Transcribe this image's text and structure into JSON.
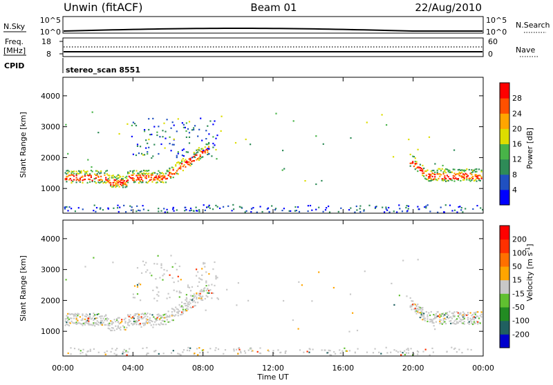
{
  "header": {
    "station": "Unwin (fitACF)",
    "beam": "Beam 01",
    "date": "22/Aug/2010"
  },
  "strip_nsky": {
    "left_label": "N.Sky",
    "right_label": "N.Search",
    "left_ticks": [
      "10^5",
      "10^0"
    ],
    "right_ticks": [
      "10^5",
      "10^0"
    ]
  },
  "strip_freq": {
    "left_label_1": "Freq.",
    "left_label_2": "[MHz]",
    "right_label": "Nave",
    "left_ticks": [
      "18",
      "8"
    ],
    "right_ticks": [
      "60",
      "0"
    ]
  },
  "cpid": {
    "label": "CPID",
    "value": "stereo_scan 8551"
  },
  "chart_data": [
    {
      "type": "heatmap",
      "ylabel": "Slant Range [km]",
      "xlabel": "Time UT",
      "yticks": [
        1000,
        2000,
        3000,
        4000
      ],
      "ylim": [
        200,
        4600
      ],
      "xticks": [
        "00:00",
        "04:00",
        "08:00",
        "12:00",
        "16:00",
        "20:00",
        "00:00"
      ],
      "xlim_hours": [
        0,
        24
      ],
      "colorbar": {
        "label": "Power [dB]",
        "ticks": [
          "4",
          "8",
          "12",
          "16",
          "20",
          "24",
          "28"
        ],
        "colors": [
          "#0000ff",
          "#2050c0",
          "#2e8b57",
          "#48b448",
          "#dddd00",
          "#ffa500",
          "#ff5000",
          "#ff0000"
        ]
      }
    },
    {
      "type": "heatmap",
      "ylabel": "Slant Range [km]",
      "xlabel": "Time UT",
      "yticks": [
        1000,
        2000,
        3000,
        4000
      ],
      "ylim": [
        200,
        4600
      ],
      "xticks": [
        "00:00",
        "04:00",
        "08:00",
        "12:00",
        "16:00",
        "20:00",
        "00:00"
      ],
      "xlim_hours": [
        0,
        24
      ],
      "colorbar": {
        "label": "Velocity [m s",
        "label_sup": "-1",
        "label_end": "]",
        "ticks": [
          "200",
          "100",
          "50",
          "15",
          "-15",
          "-50",
          "-100",
          "-200"
        ],
        "colors": [
          "#0000cc",
          "#206060",
          "#228b22",
          "#60c030",
          "#c8c8c8",
          "#ffa500",
          "#ff7000",
          "#ff3000",
          "#ff0000"
        ]
      }
    }
  ]
}
